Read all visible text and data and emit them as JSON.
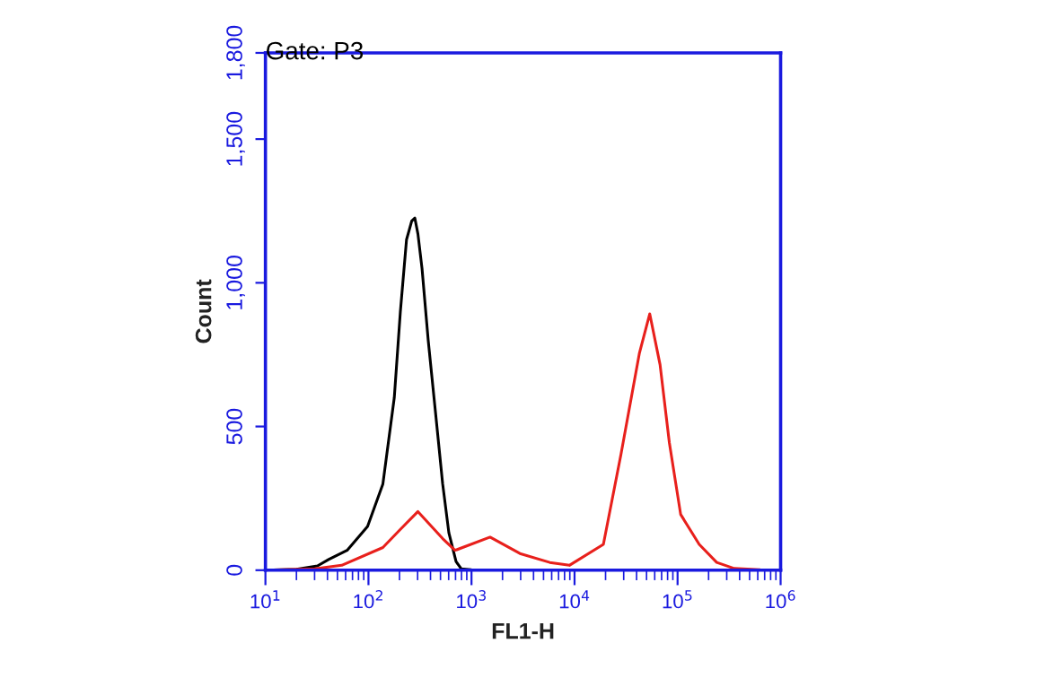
{
  "chart_data": {
    "type": "line",
    "title": "Gate: P3",
    "xlabel": "FL1-H",
    "ylabel": "Count",
    "log": "x",
    "grid": false,
    "legend": false,
    "marker": "none",
    "line_style": "solid",
    "xlim": [
      10,
      1000000
    ],
    "xticks": [
      {
        "value": 10,
        "label": "10$^{1}$"
      },
      {
        "value": 100,
        "label": "10$^{2}$"
      },
      {
        "value": 1000,
        "label": "10$^{3}$"
      },
      {
        "value": 10000,
        "label": "10$^{4}$"
      },
      {
        "value": 100000,
        "label": "10$^{5}$"
      },
      {
        "value": 1000000,
        "label": "10$^{6}$"
      }
    ],
    "ylim": [
      0,
      1800
    ],
    "yticks": [
      0,
      500,
      {
        "value": 1000,
        "label": "1,000"
      },
      {
        "value": 1500,
        "label": "1,500"
      },
      {
        "value": 1800,
        "label": "1,800"
      }
    ],
    "series": [
      {
        "color": "#000000",
        "x": [
          10,
          20,
          32,
          41,
          62,
          98,
          138,
          178,
          204,
          234,
          263,
          282,
          302,
          331,
          380,
          447,
          525,
          603,
          708,
          794,
          1000,
          1585
        ],
        "values": [
          0,
          3,
          15,
          37,
          69,
          152,
          300,
          600,
          900,
          1150,
          1215,
          1225,
          1170,
          1050,
          800,
          550,
          300,
          130,
          30,
          5,
          2,
          0
        ]
      },
      {
        "color": "#e8201c",
        "x": [
          10,
          30,
          55,
          138,
          204,
          302,
          525,
          692,
          1514,
          2951,
          5754,
          8913,
          19055,
          28184,
          42658,
          53703,
          67608,
          83176,
          107152,
          162181,
          239883,
          354813,
          616595
        ],
        "values": [
          0,
          5,
          17,
          79,
          142,
          204,
          110,
          69,
          115,
          58,
          27,
          17,
          90,
          402,
          756,
          892,
          715,
          444,
          194,
          90,
          27,
          6,
          2
        ]
      }
    ]
  }
}
